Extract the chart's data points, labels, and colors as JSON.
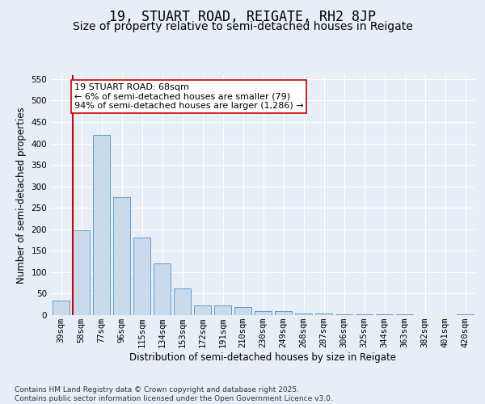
{
  "title1": "19, STUART ROAD, REIGATE, RH2 8JP",
  "title2": "Size of property relative to semi-detached houses in Reigate",
  "xlabel": "Distribution of semi-detached houses by size in Reigate",
  "ylabel": "Number of semi-detached properties",
  "categories": [
    "39sqm",
    "58sqm",
    "77sqm",
    "96sqm",
    "115sqm",
    "134sqm",
    "153sqm",
    "172sqm",
    "191sqm",
    "210sqm",
    "230sqm",
    "249sqm",
    "268sqm",
    "287sqm",
    "306sqm",
    "325sqm",
    "344sqm",
    "363sqm",
    "382sqm",
    "401sqm",
    "420sqm"
  ],
  "values": [
    33,
    197,
    420,
    275,
    180,
    121,
    62,
    23,
    22,
    18,
    9,
    9,
    4,
    3,
    2,
    1,
    1,
    1,
    0,
    0,
    1
  ],
  "bar_color": "#c9daea",
  "bar_edge_color": "#5b9bd5",
  "vline_index": 1,
  "vline_color": "#cc0000",
  "annotation_text": "19 STUART ROAD: 68sqm\n← 6% of semi-detached houses are smaller (79)\n94% of semi-detached houses are larger (1,286) →",
  "annotation_box_color": "#ffffff",
  "annotation_box_edge": "#cc0000",
  "ylim": [
    0,
    560
  ],
  "yticks": [
    0,
    50,
    100,
    150,
    200,
    250,
    300,
    350,
    400,
    450,
    500,
    550
  ],
  "footnote": "Contains HM Land Registry data © Crown copyright and database right 2025.\nContains public sector information licensed under the Open Government Licence v3.0.",
  "bg_color": "#e8eef5",
  "plot_bg_color": "#e8eef5",
  "title1_fontsize": 12,
  "title2_fontsize": 10,
  "axis_label_fontsize": 8.5,
  "tick_fontsize": 7.5,
  "annotation_fontsize": 8,
  "footnote_fontsize": 6.5
}
